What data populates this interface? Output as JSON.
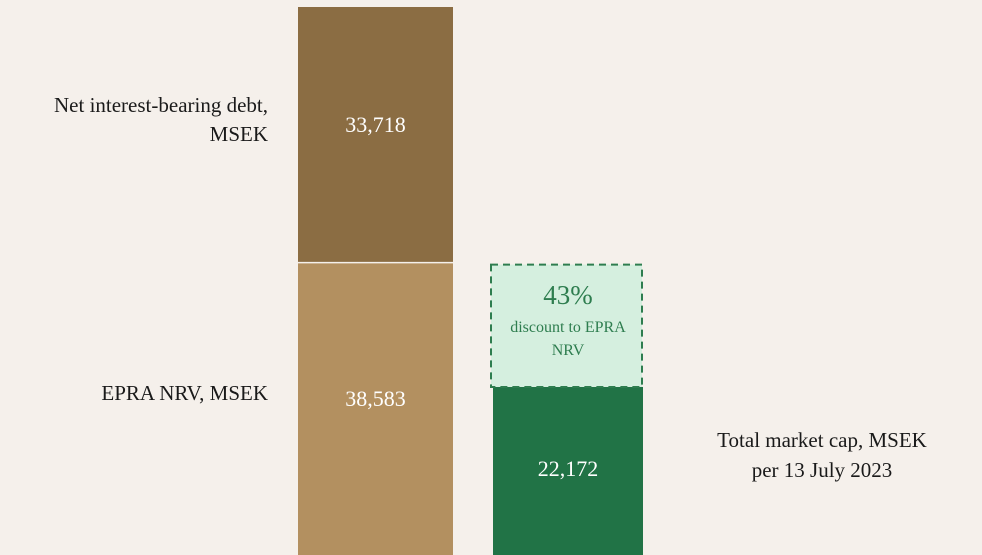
{
  "chart_data": {
    "type": "bar",
    "stacked": true,
    "categories": [
      null,
      null
    ],
    "series": [
      {
        "name": "EPRA NRV, MSEK",
        "color": "#b39060",
        "values": [
          38583,
          null
        ],
        "value_labels": [
          "38,583",
          null
        ]
      },
      {
        "name": "Net interest-bearing debt, MSEK",
        "color": "#8b6d43",
        "values": [
          33718,
          null
        ],
        "value_labels": [
          "33,718",
          null
        ]
      },
      {
        "name": "Total market cap, MSEK",
        "subtitle": "per 13 July 2023",
        "color": "#217346",
        "values": [
          null,
          22172
        ],
        "value_labels": [
          null,
          "22,172"
        ]
      }
    ],
    "annotation": {
      "value": 43,
      "value_label": "43%",
      "text": "discount to EPRA NRV",
      "color": "#2e7d4f",
      "fill": "#d5efdf"
    }
  }
}
